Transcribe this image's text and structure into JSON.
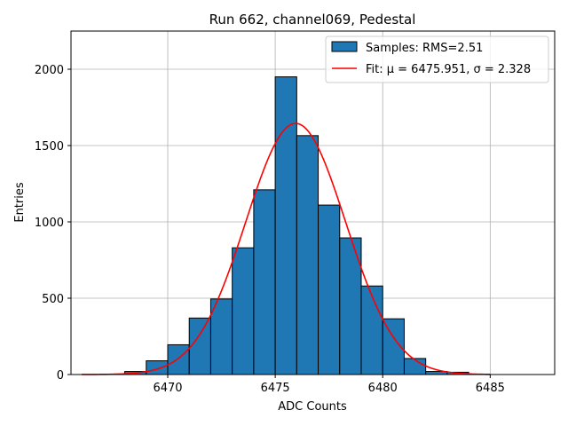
{
  "chart_data": {
    "type": "bar",
    "title": "Run 662, channel069, Pedestal",
    "xlabel": "ADC Counts",
    "ylabel": "Entries",
    "xlim": [
      6465.5,
      6488.0
    ],
    "ylim": [
      0,
      2250
    ],
    "xticks": [
      6470,
      6475,
      6480,
      6485
    ],
    "yticks": [
      0,
      500,
      1000,
      1500,
      2000
    ],
    "grid": true,
    "legend_position": "top-right",
    "bin_width": 1,
    "bins": [
      {
        "left": 6466,
        "count": 0
      },
      {
        "left": 6467,
        "count": 0
      },
      {
        "left": 6468,
        "count": 20
      },
      {
        "left": 6469,
        "count": 90
      },
      {
        "left": 6470,
        "count": 195
      },
      {
        "left": 6471,
        "count": 370
      },
      {
        "left": 6472,
        "count": 495
      },
      {
        "left": 6473,
        "count": 830
      },
      {
        "left": 6474,
        "count": 1210
      },
      {
        "left": 6475,
        "count": 1950
      },
      {
        "left": 6476,
        "count": 1565
      },
      {
        "left": 6477,
        "count": 1110
      },
      {
        "left": 6478,
        "count": 895
      },
      {
        "left": 6479,
        "count": 580
      },
      {
        "left": 6480,
        "count": 365
      },
      {
        "left": 6481,
        "count": 105
      },
      {
        "left": 6482,
        "count": 20
      },
      {
        "left": 6483,
        "count": 15
      },
      {
        "left": 6484,
        "count": 0
      }
    ],
    "fit": {
      "type": "gaussian",
      "mu": 6475.951,
      "sigma": 2.328,
      "amplitude": 1645,
      "x_range": [
        6466,
        6485
      ]
    },
    "series": [
      {
        "name": "Samples: RMS=2.51",
        "type": "histogram",
        "color": "#1f77b4"
      },
      {
        "name": "Fit: μ = 6475.951, σ = 2.328",
        "type": "line",
        "color": "#ff0000"
      }
    ]
  },
  "colors": {
    "bar_fill": "#1f77b4",
    "bar_edge": "#000000",
    "fit_line": "#ff0000",
    "grid": "#b0b0b0"
  }
}
